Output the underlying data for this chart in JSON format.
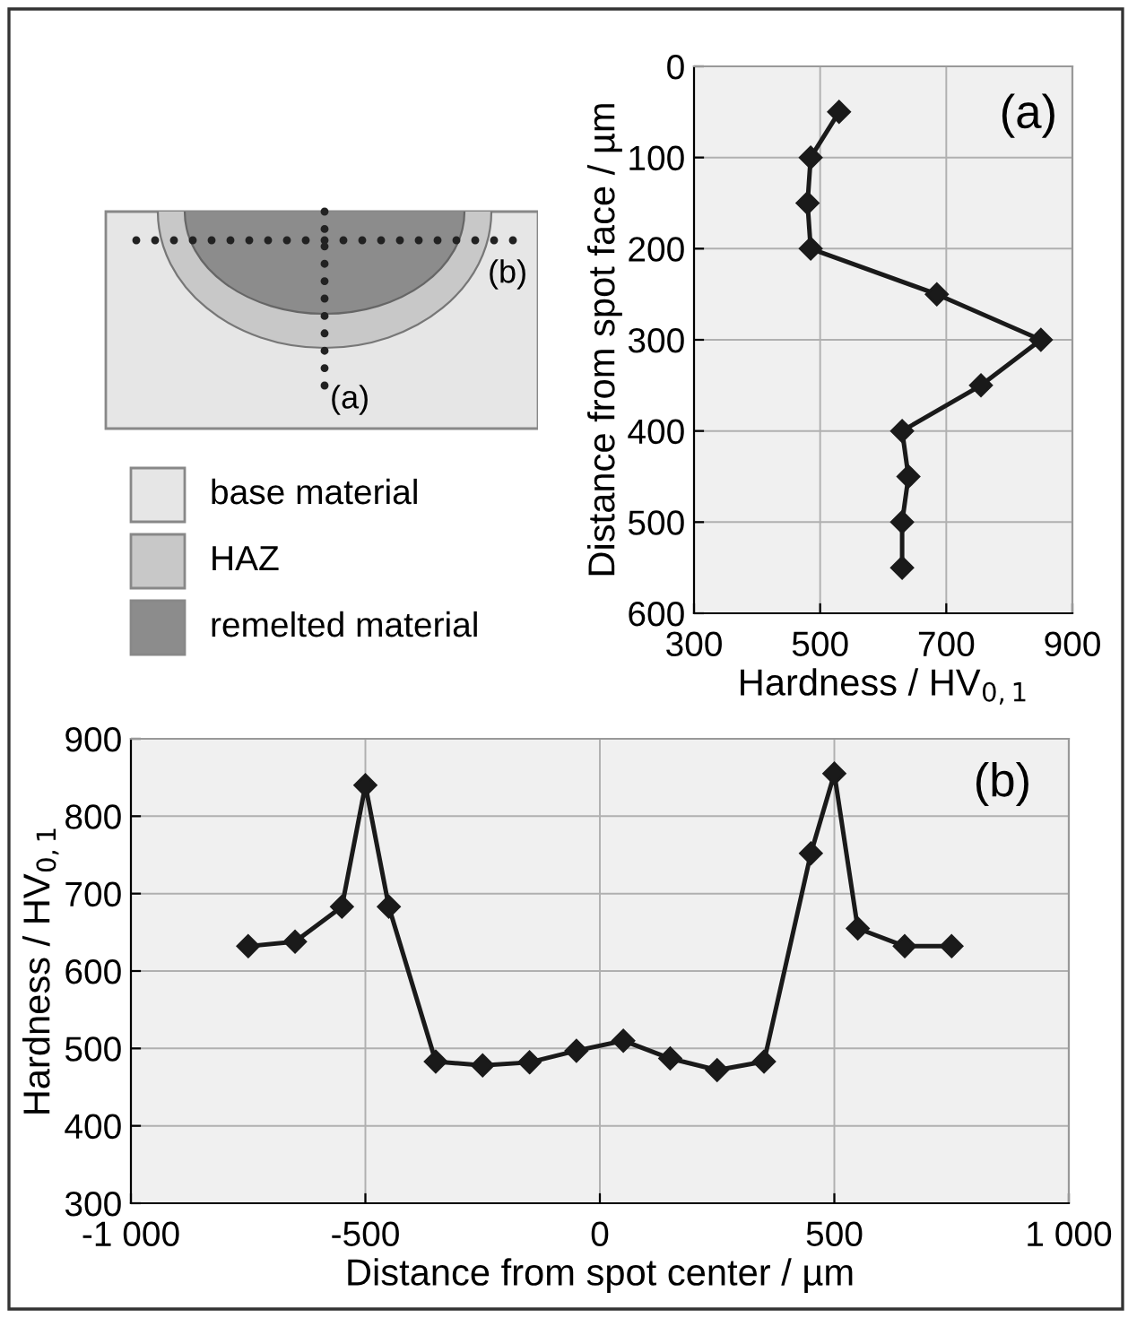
{
  "chart_data": [
    {
      "type": "other",
      "annotations": [
        "(a)",
        "(b)",
        "base material",
        "HAZ",
        "remelted material"
      ]
    },
    {
      "type": "line",
      "annotations": [
        "(a)"
      ],
      "xlabel": "Hardness / HV$_{0,1}$",
      "ylabel": "Distance from spot face / µm",
      "x": [
        530,
        485,
        480,
        485,
        685,
        850,
        755,
        630,
        640,
        630,
        630
      ],
      "values": [
        50,
        100,
        150,
        200,
        250,
        300,
        350,
        400,
        450,
        500,
        550
      ],
      "color": "#1a1a1a",
      "marker": "diamond",
      "line_style": "solid",
      "grid": true,
      "xlim": [
        300,
        900
      ],
      "xticks": [
        300,
        500,
        700,
        900
      ],
      "ylim": [
        600,
        0
      ],
      "yticks": [
        0,
        100,
        200,
        300,
        400,
        500,
        600
      ]
    },
    {
      "type": "line",
      "annotations": [
        "(b)"
      ],
      "xlabel": "Distance from spot center / µm",
      "ylabel": "Hardness / HV$_{0,1}$",
      "x": [
        -750,
        -650,
        -550,
        -500,
        -450,
        -350,
        -250,
        -150,
        -50,
        50,
        150,
        250,
        350,
        450,
        500,
        550,
        650,
        750
      ],
      "values": [
        632,
        638,
        683,
        840,
        683,
        483,
        478,
        482,
        497,
        510,
        487,
        472,
        483,
        752,
        855,
        655,
        632,
        632
      ],
      "color": "#1a1a1a",
      "marker": "diamond",
      "line_style": "solid",
      "grid": true,
      "xlim": [
        -1000,
        1000
      ],
      "xticks": [
        {
          "value": -1000,
          "label": "-1 000"
        },
        {
          "value": -500,
          "label": "-500"
        },
        0,
        {
          "value": 500,
          "label": "500"
        },
        {
          "value": 1000,
          "label": "1 000"
        }
      ],
      "ylim": [
        300,
        900
      ],
      "yticks": [
        300,
        400,
        500,
        600,
        700,
        800,
        900
      ]
    }
  ]
}
